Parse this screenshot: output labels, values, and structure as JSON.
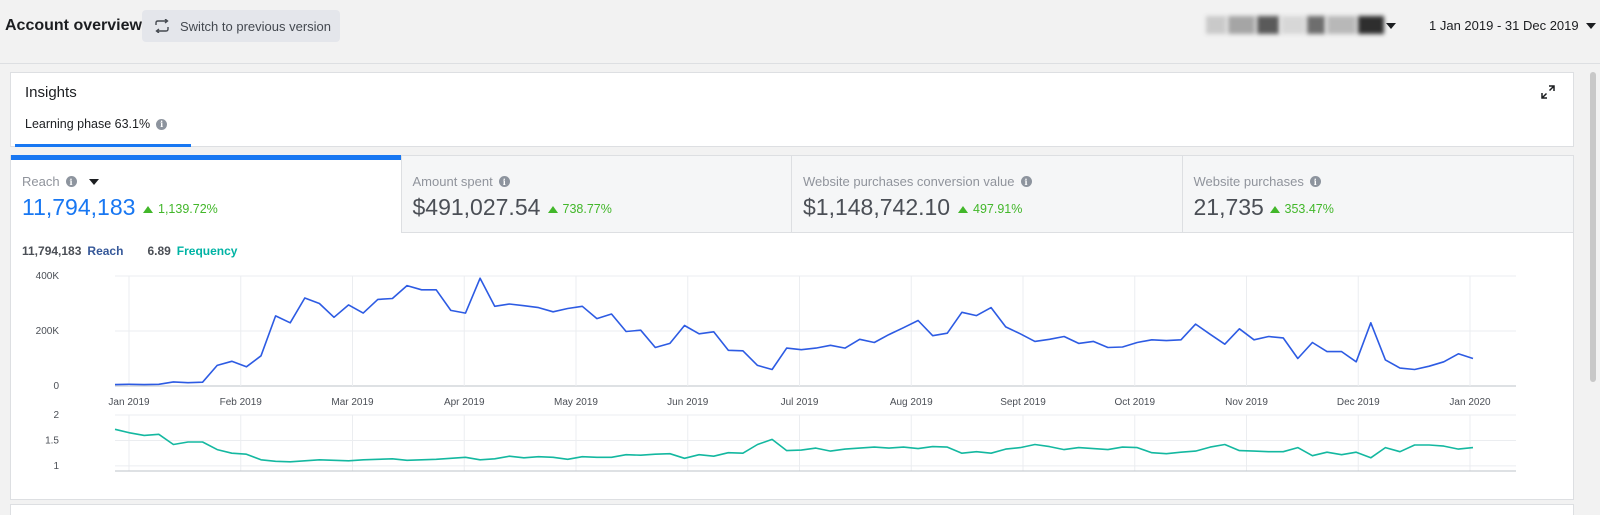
{
  "header": {
    "title": "Account overview",
    "switch_label": "Switch to previous version",
    "switch_icon": "refresh-arrows-icon",
    "date_range": "1 Jan 2019 - 31 Dec 2019"
  },
  "insights": {
    "title": "Insights",
    "learning_phase": "Learning phase 63.1%"
  },
  "tabs": [
    {
      "label": "Reach",
      "value": "11,794,183",
      "change": "1,139.72%"
    },
    {
      "label": "Amount spent",
      "value": "$491,027.54",
      "change": "738.77%"
    },
    {
      "label": "Website purchases conversion value",
      "value": "$1,148,742.10",
      "change": "497.91%"
    },
    {
      "label": "Website purchases",
      "value": "21,735",
      "change": "353.47%"
    }
  ],
  "legend": {
    "reach_value": "11,794,183",
    "reach_label": "Reach",
    "frequency_value": "6.89",
    "frequency_label": "Frequency"
  },
  "colors": {
    "accent": "#1877f2",
    "reach_line": "#2d5be3",
    "frequency_line": "#14b8a0",
    "positive": "#42b72a"
  },
  "chart_data": [
    {
      "type": "line",
      "ylim": [
        0,
        400000
      ],
      "yticks": [
        "0",
        "200K",
        "400K"
      ],
      "xticks": [
        "Jan 2019",
        "Feb 2019",
        "Mar 2019",
        "Apr 2019",
        "May 2019",
        "Jun 2019",
        "Jul 2019",
        "Aug 2019",
        "Sept 2019",
        "Oct 2019",
        "Nov 2019",
        "Dec 2019",
        "Jan 2020"
      ],
      "series": [
        {
          "name": "Reach",
          "values": [
            5000,
            6000,
            5000,
            6000,
            15000,
            12000,
            14000,
            75000,
            90000,
            70000,
            110000,
            255000,
            230000,
            320000,
            300000,
            250000,
            295000,
            265000,
            315000,
            318000,
            365000,
            350000,
            350000,
            275000,
            265000,
            392000,
            290000,
            298000,
            292000,
            285000,
            270000,
            282000,
            290000,
            245000,
            262000,
            198000,
            203000,
            140000,
            155000,
            220000,
            190000,
            197000,
            130000,
            128000,
            75000,
            60000,
            138000,
            132000,
            138000,
            148000,
            138000,
            170000,
            158000,
            187000,
            212000,
            238000,
            183000,
            192000,
            268000,
            256000,
            285000,
            215000,
            190000,
            162000,
            170000,
            180000,
            155000,
            162000,
            140000,
            142000,
            158000,
            168000,
            165000,
            168000,
            225000,
            188000,
            152000,
            208000,
            168000,
            180000,
            175000,
            100000,
            158000,
            125000,
            125000,
            88000,
            230000,
            95000,
            65000,
            60000,
            72000,
            88000,
            117000,
            100000
          ]
        }
      ]
    },
    {
      "type": "line",
      "ylim": [
        0.9,
        2
      ],
      "yticks": [
        "1",
        "1.5",
        "2"
      ],
      "series": [
        {
          "name": "Frequency",
          "values": [
            1.72,
            1.65,
            1.6,
            1.62,
            1.42,
            1.47,
            1.47,
            1.32,
            1.25,
            1.23,
            1.12,
            1.09,
            1.08,
            1.1,
            1.12,
            1.11,
            1.1,
            1.12,
            1.13,
            1.14,
            1.11,
            1.12,
            1.13,
            1.15,
            1.17,
            1.12,
            1.14,
            1.19,
            1.16,
            1.18,
            1.17,
            1.13,
            1.18,
            1.17,
            1.17,
            1.22,
            1.21,
            1.23,
            1.24,
            1.15,
            1.22,
            1.19,
            1.26,
            1.25,
            1.42,
            1.52,
            1.3,
            1.31,
            1.35,
            1.29,
            1.33,
            1.35,
            1.37,
            1.35,
            1.37,
            1.34,
            1.38,
            1.37,
            1.25,
            1.28,
            1.25,
            1.33,
            1.36,
            1.42,
            1.38,
            1.32,
            1.36,
            1.34,
            1.32,
            1.37,
            1.36,
            1.26,
            1.24,
            1.27,
            1.29,
            1.37,
            1.42,
            1.3,
            1.29,
            1.28,
            1.28,
            1.36,
            1.2,
            1.27,
            1.22,
            1.27,
            1.16,
            1.36,
            1.28,
            1.41,
            1.41,
            1.39,
            1.33,
            1.36
          ]
        }
      ]
    }
  ]
}
